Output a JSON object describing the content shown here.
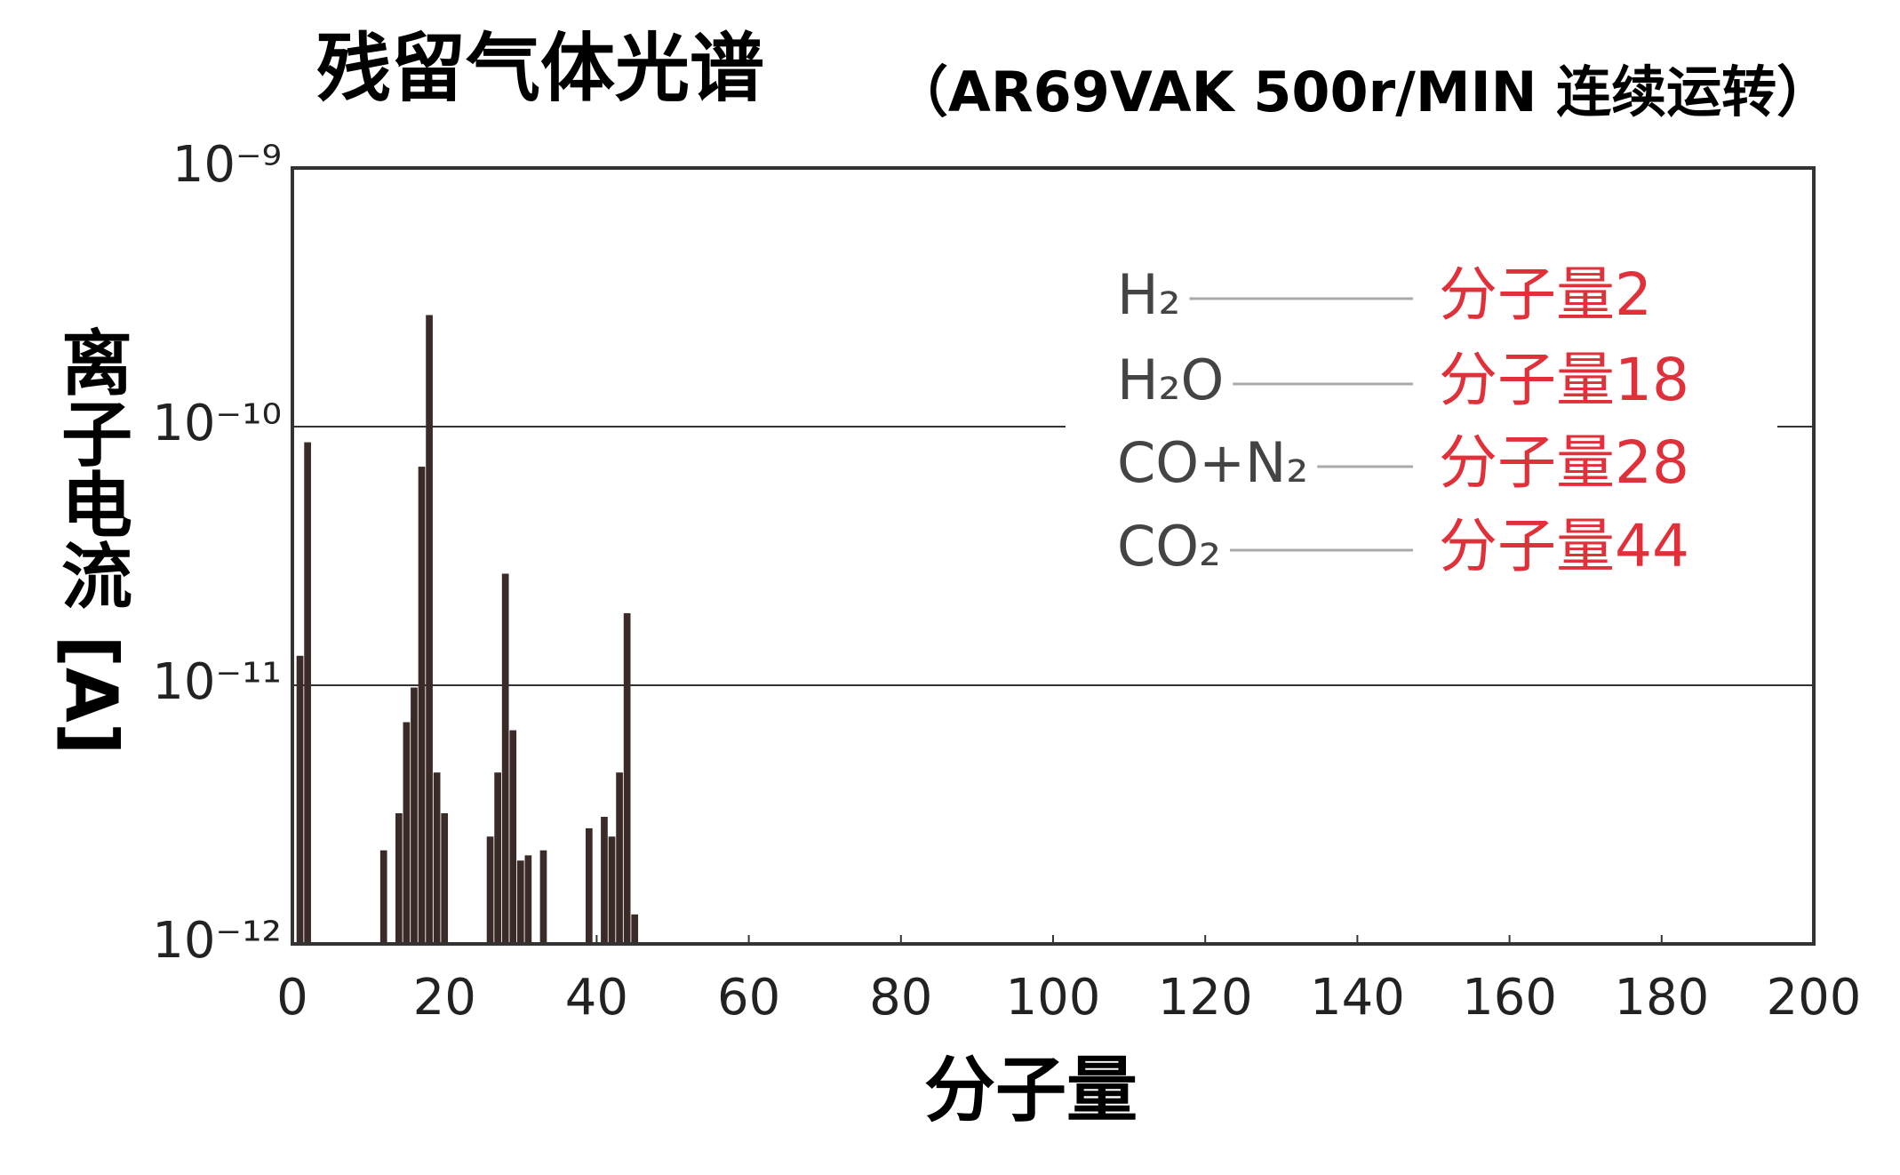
{
  "chart_data": {
    "type": "bar",
    "title": "残留气体光谱",
    "subtitle": "（AR69VAK 500r/MIN 连续运转）",
    "x_label": "分子量",
    "y_label": "离子电流 [A]",
    "log_y": true,
    "grid": true,
    "color": "#3b2b28",
    "x": [
      1,
      2,
      12,
      14,
      15,
      16,
      17,
      18,
      19,
      20,
      26,
      27,
      28,
      29,
      30,
      31,
      33,
      39,
      41,
      42,
      43,
      44,
      45
    ],
    "values": [
      1.3e-11,
      8.7e-11,
      2.3e-12,
      3.2e-12,
      7.2e-12,
      9.8e-12,
      7e-11,
      2.7e-10,
      4.6e-12,
      3.2e-12,
      2.6e-12,
      4.6e-12,
      2.7e-11,
      6.7e-12,
      2.1e-12,
      2.2e-12,
      2.3e-12,
      2.8e-12,
      3.1e-12,
      2.6e-12,
      4.6e-12,
      1.9e-11,
      1.3e-12
    ],
    "xlim": [
      0,
      200
    ],
    "xticks": [
      0,
      20,
      40,
      60,
      80,
      100,
      120,
      140,
      160,
      180,
      200
    ],
    "ylim": [
      1e-12,
      1e-09
    ],
    "yticks": [
      {
        "value": 1e-12,
        "label": "10⁻¹²"
      },
      {
        "value": 1e-11,
        "label": "10⁻¹¹"
      },
      {
        "value": 1e-10,
        "label": "10⁻¹⁰"
      },
      {
        "value": 1e-09,
        "label": "10⁻⁹"
      }
    ],
    "annotations": [
      {
        "label": "H₂",
        "text": "分子量2"
      },
      {
        "label": "H₂O",
        "text": "分子量18"
      },
      {
        "label": "CO+N₂",
        "text": "分子量28"
      },
      {
        "label": "CO₂",
        "text": "分子量44"
      }
    ]
  }
}
